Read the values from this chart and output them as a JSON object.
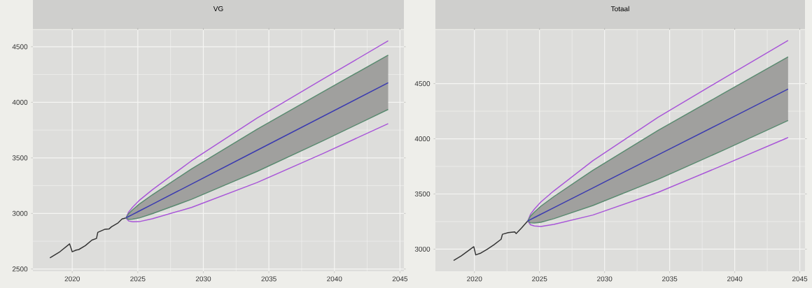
{
  "chart_data": [
    {
      "type": "line",
      "title": "VG",
      "xlim": [
        2017,
        2045.3
      ],
      "ylim": [
        2480,
        4650
      ],
      "xticks": [
        2020,
        2025,
        2030,
        2035,
        2040,
        2045
      ],
      "yticks": [
        2500,
        3000,
        3500,
        4000,
        4500
      ],
      "grid": true,
      "series": [
        {
          "color": "#333333",
          "x": [
            2018.3,
            2019.0,
            2019.8,
            2020.0,
            2020.3,
            2020.5,
            2021.0,
            2021.5,
            2021.85,
            2021.95,
            2022.5,
            2022.8,
            2023.0,
            2023.5,
            2023.8,
            2024.1
          ],
          "values": [
            2600,
            2650,
            2726,
            2655,
            2670,
            2675,
            2710,
            2760,
            2775,
            2830,
            2858,
            2860,
            2880,
            2915,
            2950,
            2960
          ]
        },
        {
          "color": "#a855d8",
          "x": [
            2024.1,
            2024.3,
            2024.6,
            2025.1,
            2026.1,
            2029.1,
            2034.1,
            2039.1,
            2044.1
          ],
          "values": [
            2960,
            3012,
            3055,
            3116,
            3212,
            3474,
            3858,
            4207,
            4553
          ]
        },
        {
          "color": "#a855d8",
          "x": [
            2024.1,
            2024.3,
            2024.6,
            2025.1,
            2026.1,
            2029.1,
            2034.1,
            2039.1,
            2044.1
          ],
          "values": [
            2960,
            2932,
            2925,
            2926,
            2952,
            3054,
            3278,
            3537,
            3808
          ]
        },
        {
          "color": "#5a8a70",
          "x": [
            2024.1,
            2024.3,
            2024.6,
            2025.1,
            2026.1,
            2029.1,
            2034.1,
            2039.1,
            2044.1
          ],
          "values": [
            2960,
            2998,
            3032,
            3083,
            3167,
            3401,
            3758,
            4092,
            4425
          ]
        },
        {
          "color": "#5a8a70",
          "x": [
            2024.1,
            2024.3,
            2024.6,
            2025.1,
            2026.1,
            2029.1,
            2034.1,
            2039.1,
            2044.1
          ],
          "values": [
            2960,
            2946,
            2948,
            2959,
            2997,
            3127,
            3378,
            3652,
            3936
          ]
        },
        {
          "color": "#3a3ab0",
          "x": [
            2024.1,
            2024.3,
            2024.6,
            2025.1,
            2026.1,
            2029.1,
            2034.1,
            2039.1,
            2044.1
          ],
          "values": [
            2960,
            2972,
            2990,
            3021,
            3082,
            3264,
            3568,
            3872,
            4176
          ],
          "lower": [
            2960,
            2946,
            2948,
            2959,
            2997,
            3127,
            3378,
            3652,
            3936
          ],
          "upper": [
            2960,
            2998,
            3032,
            3083,
            3167,
            3401,
            3758,
            4092,
            4425
          ]
        }
      ]
    },
    {
      "type": "line",
      "title": "Totaal",
      "xlim": [
        2017,
        2045.4
      ],
      "ylim": [
        2800,
        4985
      ],
      "xticks": [
        2020,
        2025,
        2030,
        2035,
        2040,
        2045
      ],
      "yticks": [
        3000,
        3500,
        4000,
        4500
      ],
      "grid": true,
      "series": [
        {
          "color": "#333333",
          "x": [
            2018.4,
            2019.0,
            2019.95,
            2020.1,
            2020.5,
            2021.0,
            2021.5,
            2022.05,
            2022.15,
            2022.6,
            2023.1,
            2023.2,
            2023.6,
            2024.1
          ],
          "values": [
            2898,
            2940,
            3022,
            2948,
            2965,
            3000,
            3040,
            3090,
            3135,
            3150,
            3156,
            3141,
            3190,
            3256
          ]
        },
        {
          "color": "#a855d8",
          "x": [
            2024.1,
            2024.3,
            2024.6,
            2025.1,
            2026.1,
            2029.1,
            2034.1,
            2039.1,
            2044.1
          ],
          "values": [
            3256,
            3315,
            3362,
            3427,
            3528,
            3801,
            4194,
            4544,
            4891
          ]
        },
        {
          "color": "#a855d8",
          "x": [
            2024.1,
            2024.3,
            2024.6,
            2025.1,
            2026.1,
            2029.1,
            2034.1,
            2039.1,
            2044.1
          ],
          "values": [
            3256,
            3221,
            3210,
            3205,
            3224,
            3309,
            3514,
            3760,
            4011
          ]
        },
        {
          "color": "#5a8a70",
          "x": [
            2024.1,
            2024.3,
            2024.6,
            2025.1,
            2026.1,
            2029.1,
            2034.1,
            2039.1,
            2044.1
          ],
          "values": [
            3256,
            3298,
            3335,
            3389,
            3476,
            3715,
            4076,
            4409,
            4742
          ]
        },
        {
          "color": "#5a8a70",
          "x": [
            2024.1,
            2024.3,
            2024.6,
            2025.1,
            2026.1,
            2029.1,
            2034.1,
            2039.1,
            2044.1
          ],
          "values": [
            3256,
            3238,
            3237,
            3243,
            3276,
            3395,
            3632,
            3895,
            4166
          ]
        },
        {
          "color": "#3a3ab0",
          "x": [
            2024.1,
            2024.3,
            2024.6,
            2025.1,
            2026.1,
            2029.1,
            2034.1,
            2039.1,
            2044.1
          ],
          "values": [
            3256,
            3268,
            3286,
            3316,
            3376,
            3555,
            3854,
            4152,
            4451
          ],
          "lower": [
            3256,
            3238,
            3237,
            3243,
            3276,
            3395,
            3632,
            3895,
            4166
          ],
          "upper": [
            3256,
            3298,
            3335,
            3389,
            3476,
            3715,
            4076,
            4409,
            4742
          ]
        }
      ]
    }
  ]
}
